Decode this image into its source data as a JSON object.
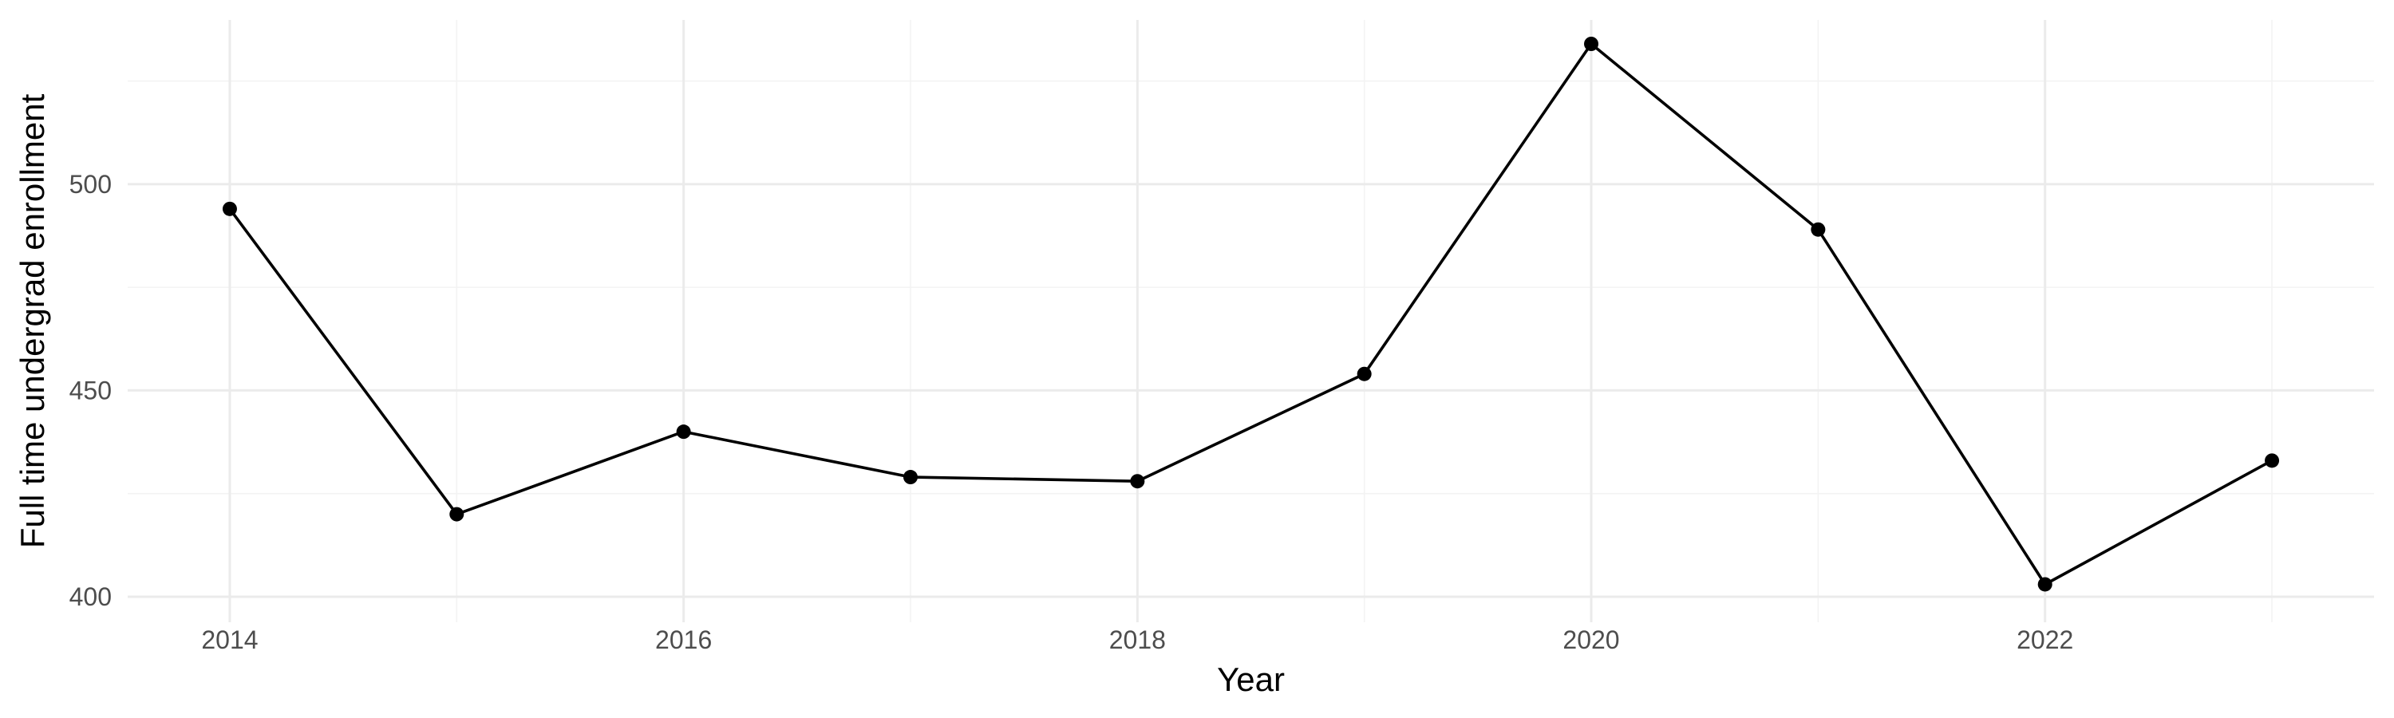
{
  "chart_data": {
    "type": "line",
    "xlabel": "Year",
    "ylabel": "Full time undergrad enrollment",
    "x": [
      2014,
      2015,
      2016,
      2017,
      2018,
      2019,
      2020,
      2021,
      2022,
      2023
    ],
    "series": [
      {
        "values": [
          494,
          420,
          440,
          429,
          428,
          454,
          534,
          489,
          403,
          433
        ]
      }
    ],
    "x_ticks": [
      2014,
      2016,
      2018,
      2020,
      2022
    ],
    "y_ticks": [
      400,
      450,
      500
    ],
    "xlim": [
      2013.55,
      2023.45
    ],
    "ylim": [
      400,
      534
    ],
    "grid": true,
    "legend": "none",
    "colors": {
      "line": "#000000",
      "point": "#000000",
      "grid": "#ebebeb"
    }
  }
}
